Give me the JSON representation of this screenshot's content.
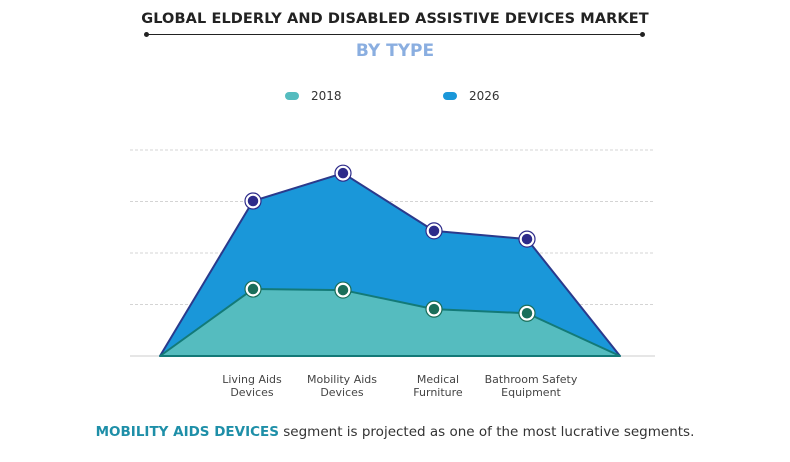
{
  "title": "GLOBAL ELDERLY AND DISABLED ASSISTIVE DEVICES MARKET",
  "subtitle": "BY TYPE",
  "footer": {
    "highlight": "MOBILITY AIDS DEVICES",
    "rest": " segment is projected as one of the most lucrative segments."
  },
  "chart_data": {
    "type": "area",
    "title": "GLOBAL ELDERLY AND DISABLED ASSISTIVE DEVICES MARKET",
    "subtitle": "BY TYPE",
    "categories": [
      "",
      "Living Aids Devices",
      "Mobility Aids Devices",
      "Medical Furniture",
      "Bathroom Safety Equipment",
      ""
    ],
    "category_lines": [
      [
        "",
        ""
      ],
      [
        "Living Aids",
        "Devices"
      ],
      [
        "Mobility Aids",
        "Devices"
      ],
      [
        "Medical",
        "Furniture"
      ],
      [
        "Bathroom Safety",
        "Equipment"
      ],
      [
        "",
        ""
      ]
    ],
    "series": [
      {
        "name": "2018",
        "values": [
          0,
          1.3,
          1.28,
          0.91,
          0.83,
          0
        ],
        "color": "#55bcbf",
        "line": "#137a78",
        "marker": "#1a6e5a"
      },
      {
        "name": "2026",
        "values": [
          0,
          3.01,
          3.55,
          2.43,
          2.27,
          0
        ],
        "color": "#1a97d9",
        "line": "#2a3a8c",
        "marker": "#2d2b8a"
      }
    ],
    "ylim": [
      0,
      4
    ],
    "y_ticks_shown": false,
    "grid": true,
    "legend": "top-center"
  }
}
